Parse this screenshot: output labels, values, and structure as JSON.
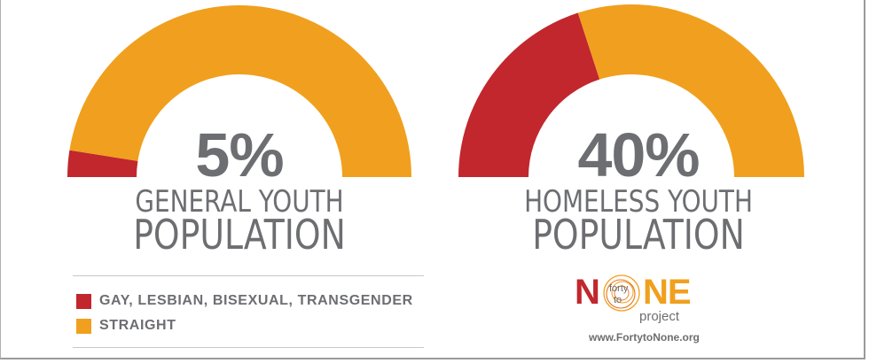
{
  "colors": {
    "lgbt": "#c1272d",
    "straight": "#f0a01e",
    "text": "#6d6e71"
  },
  "chart_data": [
    {
      "type": "pie",
      "subtype": "half-donut",
      "percent_label": "5%",
      "label_line1": "GENERAL YOUTH",
      "label_line2": "POPULATION",
      "slices": [
        {
          "category": "GAY, LESBIAN, BISEXUAL, TRANSGENDER",
          "value": 5
        },
        {
          "category": "STRAIGHT",
          "value": 95
        }
      ]
    },
    {
      "type": "pie",
      "subtype": "half-donut",
      "percent_label": "40%",
      "label_line1": "HOMELESS YOUTH",
      "label_line2": "POPULATION",
      "slices": [
        {
          "category": "GAY, LESBIAN, BISEXUAL, TRANSGENDER",
          "value": 40
        },
        {
          "category": "STRAIGHT",
          "value": 60
        }
      ]
    }
  ],
  "legend": [
    {
      "label": "GAY, LESBIAN, BISEXUAL, TRANSGENDER",
      "color": "#c1272d"
    },
    {
      "label": "STRAIGHT",
      "color": "#f0a01e"
    }
  ],
  "logo": {
    "word_part1": "N",
    "word_part2": "NE",
    "small_top": "forty",
    "small_bottom": "to",
    "project": "project",
    "url": "www.FortytoNone.org"
  }
}
